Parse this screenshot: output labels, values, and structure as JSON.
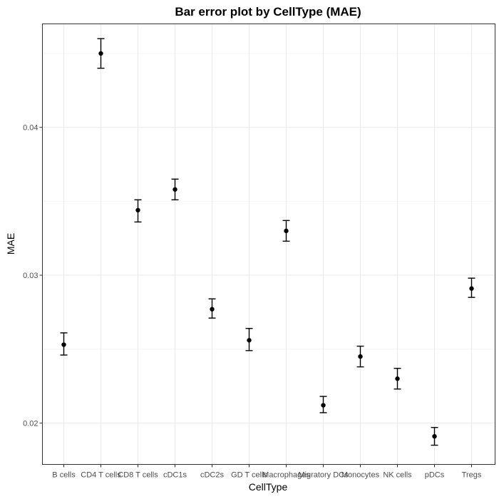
{
  "chart_data": {
    "type": "scatter",
    "title": "Bar error plot by CellType (MAE)",
    "xlabel": "CellType",
    "ylabel": "MAE",
    "categories": [
      "B cells",
      "CD4 T cells",
      "CD8 T cells",
      "cDC1s",
      "cDC2s",
      "GD T cells",
      "Macrophages",
      "Migratory DCs",
      "Monocytes",
      "NK cells",
      "pDCs",
      "Tregs"
    ],
    "values": [
      0.0253,
      0.045,
      0.0344,
      0.0358,
      0.0277,
      0.0256,
      0.033,
      0.0212,
      0.0245,
      0.023,
      0.0191,
      0.0291
    ],
    "error_low": [
      0.0246,
      0.044,
      0.0336,
      0.0351,
      0.0271,
      0.0249,
      0.0323,
      0.0207,
      0.0238,
      0.0223,
      0.0185,
      0.0285
    ],
    "error_high": [
      0.0261,
      0.046,
      0.0351,
      0.0365,
      0.0284,
      0.0264,
      0.0337,
      0.0218,
      0.0252,
      0.0237,
      0.0197,
      0.0298
    ],
    "y_ticks": [
      0.02,
      0.03,
      0.04
    ],
    "y_tick_labels": [
      "0.02",
      "0.03",
      "0.04"
    ],
    "ylim": [
      0.0172,
      0.047
    ],
    "grid": true,
    "legend": "none",
    "colors": {
      "point": "#000000",
      "grid_major": "#ebebeb",
      "grid_minor": "#f5f5f5",
      "panel_border": "#333333",
      "tick_text": "#4d4d4d"
    }
  }
}
